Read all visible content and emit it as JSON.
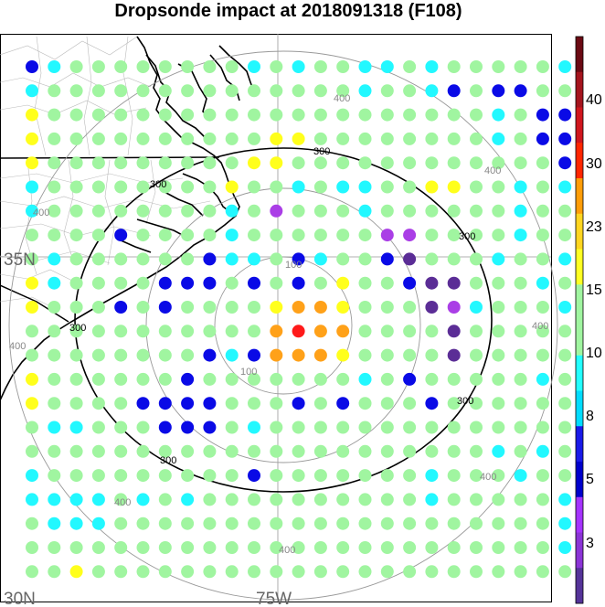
{
  "title": "Dropsonde impact at 2018091318 (F108)",
  "map": {
    "lat_labels": [
      "35N",
      "30N"
    ],
    "lon_labels": [
      "75W"
    ],
    "ring_labels": [
      "100",
      "300",
      "400"
    ],
    "ring_inner_color": "#888888",
    "ring_300_color": "#000000"
  },
  "colorbar": {
    "labels": [
      "40",
      "30",
      "23",
      "15",
      "10",
      "8",
      "5",
      "3"
    ],
    "colors": [
      "#6b0a13",
      "#a5141d",
      "#d0161d",
      "#ff2600",
      "#ff9d08",
      "#ffd520",
      "#ffff22",
      "#a0f5a0",
      "#a0f5a0",
      "#22ffff",
      "#00dcff",
      "#1a1ae8",
      "#0000cc",
      "#a533ff",
      "#8b34d6",
      "#553399"
    ]
  },
  "category_colors": {
    "green": "#a0f5a0",
    "cyan": "#22f8ff",
    "blue": "#0a0ae6",
    "yellow": "#ffff1c",
    "orange": "#ffa119",
    "red": "#ff1a1a",
    "purple": "#aa3ee6",
    "indigo": "#5b2d96"
  },
  "grid_categories": [
    "BCGGGGGGGGCGCGGCCGCGGGGGC",
    "CGGGGGGGGGGGGGGCGGCBGBBGG",
    "YGGGGGGGGGGGGGGGGGGGGCGBB",
    "YGGGGGGGGGGYYGGGGGGGGCGBB",
    "YGGGGGGGGGYYGGGGGGGGGGGGB",
    "CGGGGGGGGYGGCGCCGGYYGGCGC",
    "CGGGGGGGGCGPGGGCGGGGGGCGG",
    "GGGGBGGGGCGGGGGGPPGGGGCGG",
    "GCGGGGGGBCCGBCGGBIGGGCGGC",
    "YCGGGGBBBGBGBGYGGBIIGGGCG",
    "YGGGBGBGGGGYOOYGGGIPCGGGC",
    "GGGGGGGGGGGOROOGGGGIGGGGG",
    "GGGGGGGGBCBOOOYGGGGIGGGGG",
    "YGGGGGGBGGGGGGGCGBGGGGGCG",
    "YGGGGBBBBGGGBGBGGGBGGGGGG",
    "GCCGGGBBBGCGGGGGGGGGGGGGG",
    "GGGGGGGGGGGGGGGGGGGGGCGCG",
    "CGGGGGGGGGBGGGGGGGCGGGCGG",
    "CCCCGCGCGGGGGGGGGGCGGGGGC",
    "GCCCGGGGGGGGGGGGGGGGGGGGC",
    "GGGGGGGGGGGGGGGGGGGGGGGGC",
    "GGYGGGGGGGGGGGGGGGGGGGGGG"
  ]
}
